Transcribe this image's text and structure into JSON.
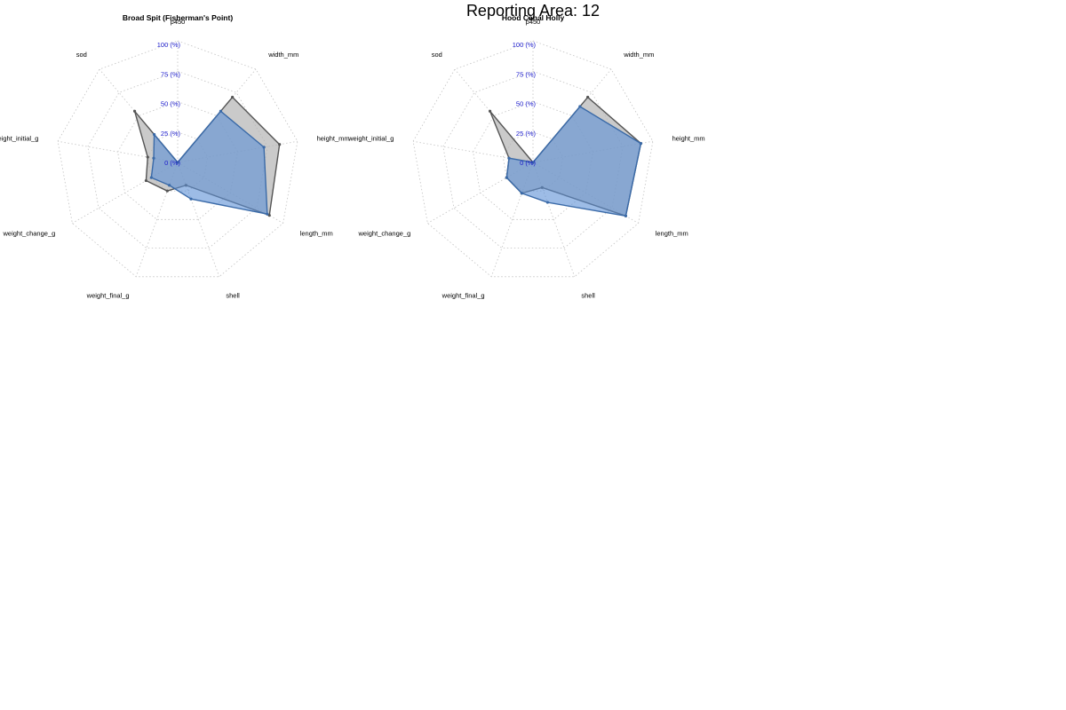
{
  "page_title": "Reporting Area: 12",
  "colors": {
    "grid": "#c8c8c8",
    "tick_label": "#1a1acc",
    "series_gray_fill": "#b3b3b3",
    "series_gray_line": "#555555",
    "series_blue_fill": "#5b8fd6",
    "series_blue_line": "#3a6aa8"
  },
  "chart_data": [
    {
      "type": "radar",
      "title": "Broad Spit (Fisherman's Point)",
      "axes": [
        "p450",
        "width_mm",
        "height_mm",
        "length_mm",
        "shell",
        "weight_final_g",
        "weight_change_g",
        "weight_initial_g",
        "sod"
      ],
      "tick_labels": [
        "0 (%)",
        "25 (%)",
        "50 (%)",
        "75 (%)",
        "100 (%)"
      ],
      "ylim": [
        0,
        100
      ],
      "series": [
        {
          "color": "gray",
          "values": [
            0,
            70,
            85,
            87,
            20,
            25,
            30,
            25,
            55
          ]
        },
        {
          "color": "blue",
          "values": [
            0,
            55,
            72,
            85,
            32,
            20,
            25,
            20,
            30
          ]
        }
      ]
    },
    {
      "type": "radar",
      "title": "Hood Canal Holly",
      "axes": [
        "p450",
        "width_mm",
        "height_mm",
        "length_mm",
        "shell",
        "weight_final_g",
        "weight_change_g",
        "weight_initial_g",
        "sod"
      ],
      "tick_labels": [
        "0 (%)",
        "25 (%)",
        "50 (%)",
        "75 (%)",
        "100 (%)"
      ],
      "ylim": [
        0,
        100
      ],
      "series": [
        {
          "color": "gray",
          "values": [
            0,
            70,
            90,
            88,
            22,
            27,
            25,
            20,
            55
          ]
        },
        {
          "color": "blue",
          "values": [
            0,
            60,
            90,
            88,
            35,
            27,
            25,
            20,
            0
          ]
        }
      ]
    }
  ]
}
